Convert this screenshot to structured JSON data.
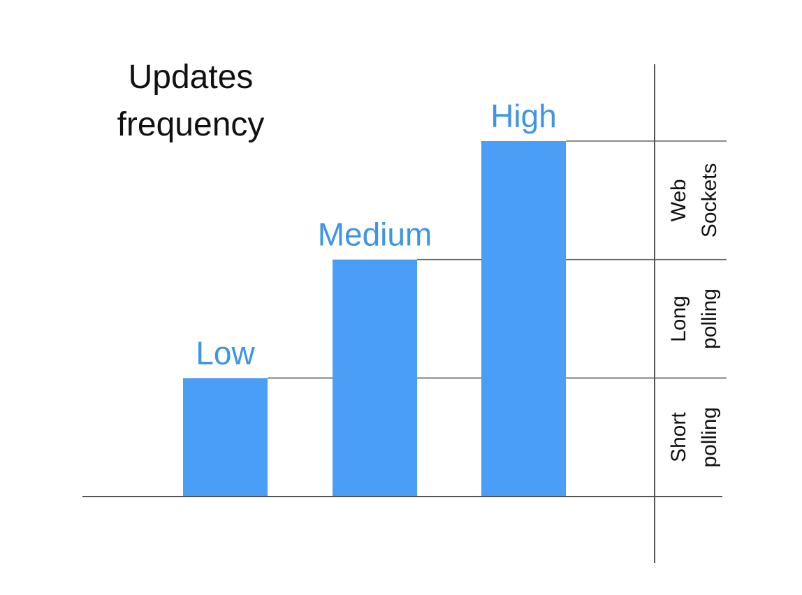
{
  "chart_data": {
    "type": "bar",
    "title_lines": [
      "Updates",
      "frequency"
    ],
    "categories": [
      "Low",
      "Medium",
      "High"
    ],
    "values": [
      1,
      2,
      3
    ],
    "ylim": [
      0,
      3
    ],
    "grid": false,
    "bar_color": "#4a9ef5",
    "label_color": "#3d95e8",
    "axis_color": "#555555",
    "guide_color": "#666666",
    "bands": [
      {
        "level_from": 0,
        "level_to": 1,
        "lines": [
          "Short",
          "polling"
        ]
      },
      {
        "level_from": 1,
        "level_to": 2,
        "lines": [
          "Long",
          "polling"
        ]
      },
      {
        "level_from": 2,
        "level_to": 3,
        "lines": [
          "Web",
          "Sockets"
        ]
      }
    ]
  }
}
